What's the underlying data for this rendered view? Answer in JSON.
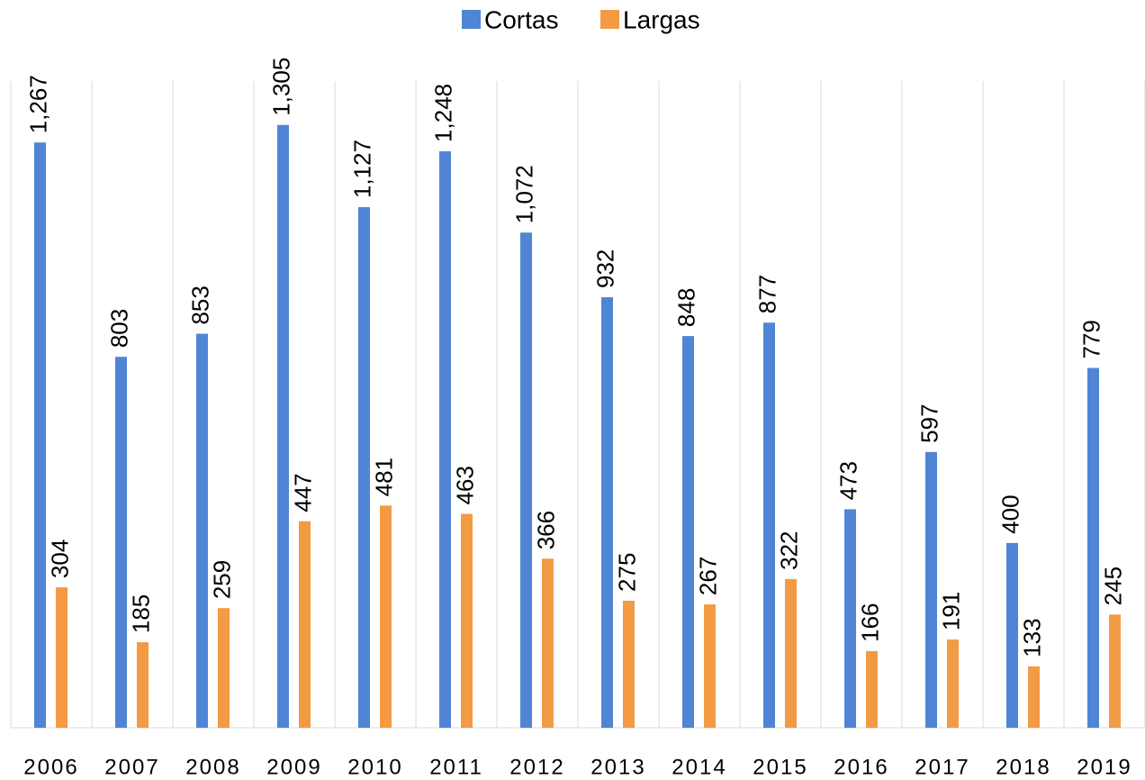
{
  "chart_data": {
    "type": "bar",
    "categories": [
      "2006",
      "2007",
      "2008",
      "2009",
      "2010",
      "2011",
      "2012",
      "2013",
      "2014",
      "2015",
      "2016",
      "2017",
      "2018",
      "2019"
    ],
    "series": [
      {
        "name": "Cortas",
        "color": "#5085d6",
        "values": [
          1267,
          803,
          853,
          1305,
          1127,
          1248,
          1072,
          932,
          848,
          877,
          473,
          597,
          400,
          779
        ],
        "value_labels": [
          "1,267",
          "803",
          "853",
          "1,305",
          "1,127",
          "1,248",
          "1,072",
          "932",
          "848",
          "877",
          "473",
          "597",
          "400",
          "779"
        ]
      },
      {
        "name": "Largas",
        "color": "#f39a44",
        "values": [
          304,
          185,
          259,
          447,
          481,
          463,
          366,
          275,
          267,
          322,
          166,
          191,
          133,
          245
        ]
      }
    ],
    "ylim": [
      0,
      1400
    ],
    "legend": "top"
  }
}
